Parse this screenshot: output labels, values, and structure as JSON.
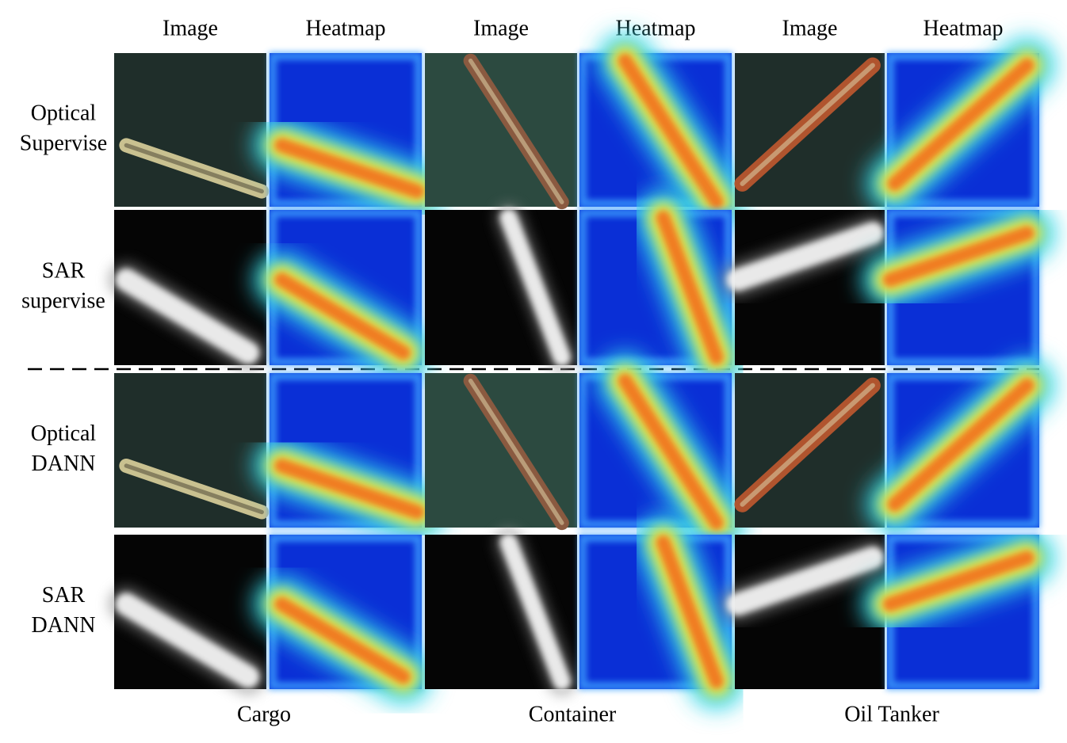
{
  "column_headers": [
    "Image",
    "Heatmap",
    "Image",
    "Heatmap",
    "Image",
    "Heatmap"
  ],
  "rows": [
    {
      "label": [
        "Optical",
        "Supervise"
      ]
    },
    {
      "label": [
        "SAR",
        "supervise"
      ]
    },
    {
      "label": [
        "Optical",
        "DANN"
      ]
    },
    {
      "label": [
        "SAR",
        "DANN"
      ]
    }
  ],
  "classes": [
    "Cargo",
    "Container",
    "Oil Tanker"
  ]
}
